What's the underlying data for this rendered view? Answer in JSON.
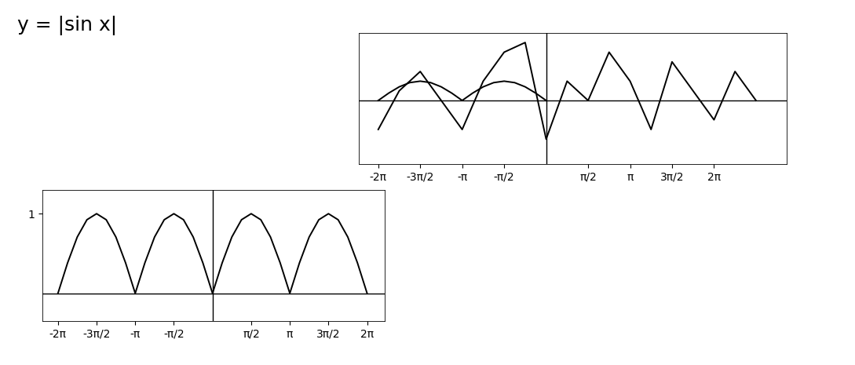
{
  "title": "y = |sin x|",
  "chart_data": [
    {
      "type": "line",
      "xlim": [
        -6.9,
        7.0
      ],
      "ylim": [
        -0.35,
        1.3
      ],
      "xticks": [
        {
          "value": -6.283,
          "label": "-2π"
        },
        {
          "value": -4.712,
          "label": "-3π/2"
        },
        {
          "value": -3.142,
          "label": "-π"
        },
        {
          "value": -1.571,
          "label": "-π/2"
        },
        {
          "value": 1.571,
          "label": "π/2"
        },
        {
          "value": 3.142,
          "label": "π"
        },
        {
          "value": 4.712,
          "label": "3π/2"
        },
        {
          "value": 6.283,
          "label": "2π"
        }
      ],
      "yticks": [
        1
      ],
      "color": "#000000",
      "series": [
        {
          "color": "#000000",
          "x": [
            -6.283,
            -5.89,
            -5.498,
            -5.105,
            -4.712,
            -4.32,
            -3.927,
            -3.534,
            -3.142,
            -2.749,
            -2.356,
            -1.963,
            -1.571,
            -1.178,
            -0.785,
            -0.393,
            0,
            0.393,
            0.785,
            1.178,
            1.571,
            1.963,
            2.356,
            2.749,
            3.142,
            3.534,
            3.927,
            4.32,
            4.712,
            5.105,
            5.498,
            5.89,
            6.283
          ],
          "values": [
            0,
            0.383,
            0.707,
            0.924,
            1,
            0.924,
            0.707,
            0.383,
            0,
            0.383,
            0.707,
            0.924,
            1,
            0.924,
            0.707,
            0.383,
            0,
            0.383,
            0.707,
            0.924,
            1,
            0.924,
            0.707,
            0.383,
            0,
            0.383,
            0.707,
            0.924,
            1,
            0.924,
            0.707,
            0.383,
            0
          ]
        }
      ]
    },
    {
      "type": "line",
      "xlim": [
        -7.0,
        9.0
      ],
      "ylim": [
        -3.3,
        3.5
      ],
      "xticks": [
        {
          "value": -6.283,
          "label": "-2π"
        },
        {
          "value": -4.712,
          "label": "-3π/2"
        },
        {
          "value": -3.142,
          "label": "-π"
        },
        {
          "value": -1.571,
          "label": "-π/2"
        },
        {
          "value": 1.571,
          "label": "π/2"
        },
        {
          "value": 3.142,
          "label": "π"
        },
        {
          "value": 4.712,
          "label": "3π/2"
        },
        {
          "value": 6.283,
          "label": "2π"
        }
      ],
      "yticks": [],
      "tick_labels": "x",
      "series": [
        {
          "color": "#000000",
          "x": [
            -6.283,
            -5.89,
            -5.498,
            -5.105,
            -4.712,
            -4.32,
            -3.927,
            -3.534,
            -3.142,
            -2.749,
            -2.356,
            -1.963,
            -1.571,
            -1.178,
            -0.785,
            -0.393,
            0
          ],
          "values": [
            0,
            0.383,
            0.707,
            0.924,
            1,
            0.924,
            0.707,
            0.383,
            0,
            0.383,
            0.707,
            0.924,
            1,
            0.924,
            0.707,
            0.383,
            0
          ]
        },
        {
          "color": "#000000",
          "x": [
            -6.283,
            -5.498,
            -4.712,
            -3.927,
            -3.142,
            -2.356,
            -1.571,
            -0.785,
            0,
            0.785,
            1.571,
            2.356,
            3.142,
            3.927,
            4.712,
            5.498,
            6.283,
            7.069,
            7.854
          ],
          "values": [
            -1.5,
            0.5,
            1.5,
            0,
            -1.5,
            1,
            2.5,
            3,
            -2,
            1,
            0,
            2.5,
            1,
            -1.5,
            2,
            0.5,
            -1,
            1.5,
            0
          ]
        }
      ]
    }
  ]
}
